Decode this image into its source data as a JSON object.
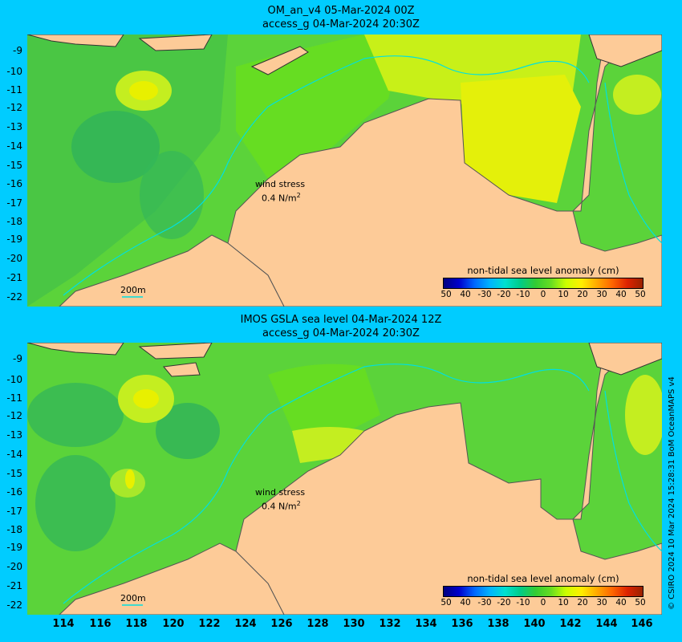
{
  "top_panel": {
    "title_line1": "OM_an_v4  05-Mar-2024 00Z",
    "title_line2": "access_g 04-Mar-2024 20:30Z",
    "wind_stress_label": "wind stress",
    "wind_stress_value": "0.4 N/m",
    "wind_stress_exp": "2",
    "scale_label": "200m",
    "legend": {
      "title": "non-tidal sea level anomaly (cm)",
      "ticks": [
        "50",
        "40",
        "-30",
        "-20",
        "-10",
        "0",
        "10",
        "20",
        "30",
        "40",
        "50"
      ]
    }
  },
  "bottom_panel": {
    "title_line1": "IMOS GSLA sea level  04-Mar-2024 12Z",
    "title_line2": "access_g 04-Mar-2024 20:30Z",
    "wind_stress_label": "wind stress",
    "wind_stress_value": "0.4 N/m",
    "wind_stress_exp": "2",
    "scale_label": "200m",
    "legend": {
      "title": "non-tidal sea level anomaly (cm)",
      "ticks": [
        "50",
        "40",
        "-30",
        "-20",
        "-10",
        "0",
        "10",
        "20",
        "30",
        "40",
        "50"
      ]
    }
  },
  "y_axis": [
    "-9",
    "-10",
    "-11",
    "-12",
    "-13",
    "-14",
    "-15",
    "-16",
    "-17",
    "-18",
    "-19",
    "-20",
    "-21",
    "-22"
  ],
  "x_axis": [
    "114",
    "116",
    "118",
    "120",
    "122",
    "124",
    "126",
    "128",
    "130",
    "132",
    "134",
    "136",
    "138",
    "140",
    "142",
    "144",
    "146"
  ],
  "credit": "© CSIRO 2024  10 Mar 2024 15:28:31 BoM OceanMAPS v4",
  "colors": {
    "background": "#00ccff",
    "land": "#fdcb98",
    "sea_green": "#5bd33a",
    "sea_yellow": "#d8f51c",
    "isobath": "#00e0e0"
  }
}
